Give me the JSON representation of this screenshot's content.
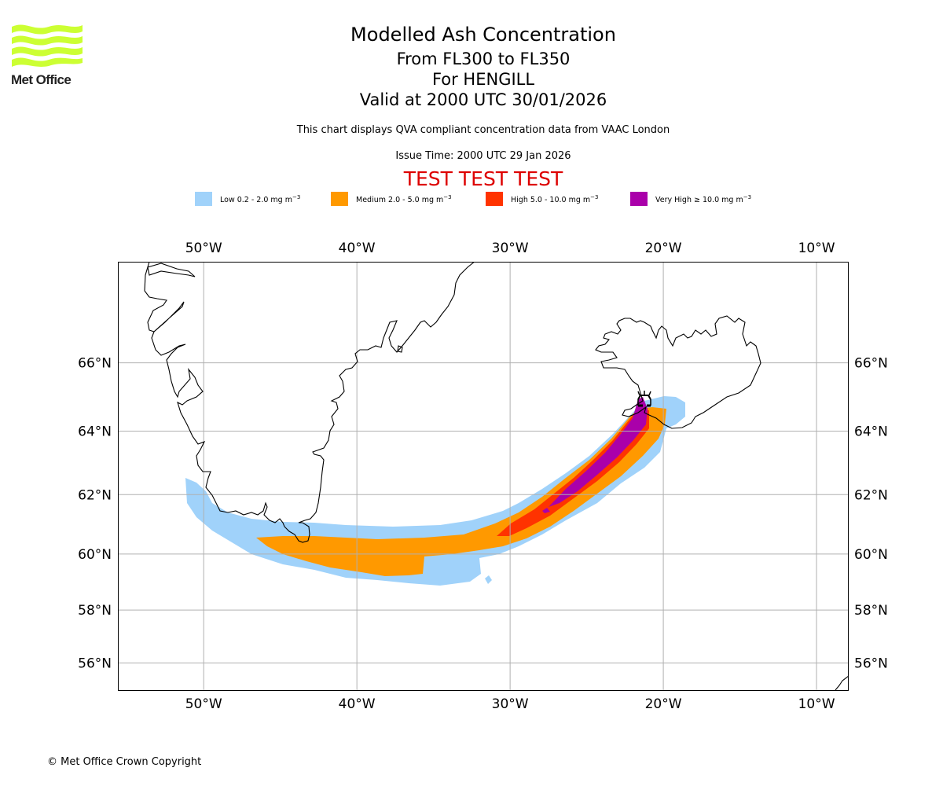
{
  "logo": {
    "name": "Met Office",
    "icon": "met-office-wave-logo",
    "color": "#ccff33"
  },
  "header": {
    "title": "Modelled Ash Concentration",
    "levels": "From FL300 to FL350",
    "volcano": "For HENGILL",
    "valid": "Valid at 2000 UTC 30/01/2026",
    "description": "This chart displays QVA compliant concentration data from VAAC London",
    "issue_time": "Issue Time: 2000 UTC 29 Jan 2026",
    "test_banner": "TEST TEST TEST"
  },
  "legend": [
    {
      "label": "Low 0.2 - 2.0 mg m",
      "unit_exp": "−3",
      "color": "#a0d2fa"
    },
    {
      "label": "Medium 2.0 - 5.0 mg m",
      "unit_exp": "−3",
      "color": "#ff9900"
    },
    {
      "label": "High 5.0 - 10.0 mg m",
      "unit_exp": "−3",
      "color": "#ff3300"
    },
    {
      "label": "Very High ≥ 10.0 mg m",
      "unit_exp": "−3",
      "color": "#aa00aa"
    }
  ],
  "map": {
    "lon_range": [
      -55.6,
      -7.9
    ],
    "lat_range": [
      54.9,
      68.7
    ],
    "lon_ticks": [
      -50,
      -40,
      -30,
      -20,
      -10
    ],
    "lon_tick_labels": [
      "50°W",
      "40°W",
      "30°W",
      "20°W",
      "10°W"
    ],
    "lat_ticks": [
      56,
      58,
      60,
      62,
      64,
      66
    ],
    "lat_tick_labels": [
      "56°N",
      "58°N",
      "60°N",
      "62°N",
      "64°N",
      "66°N"
    ],
    "grid": true,
    "volcano_marker": {
      "name": "HENGILL",
      "lon": -21.3,
      "lat": 64.1,
      "icon": "volcano-icon"
    },
    "gridline_color": "#b0b0b0",
    "coast_color": "#000000"
  },
  "footer": {
    "copyright": "© Met Office Crown Copyright"
  }
}
